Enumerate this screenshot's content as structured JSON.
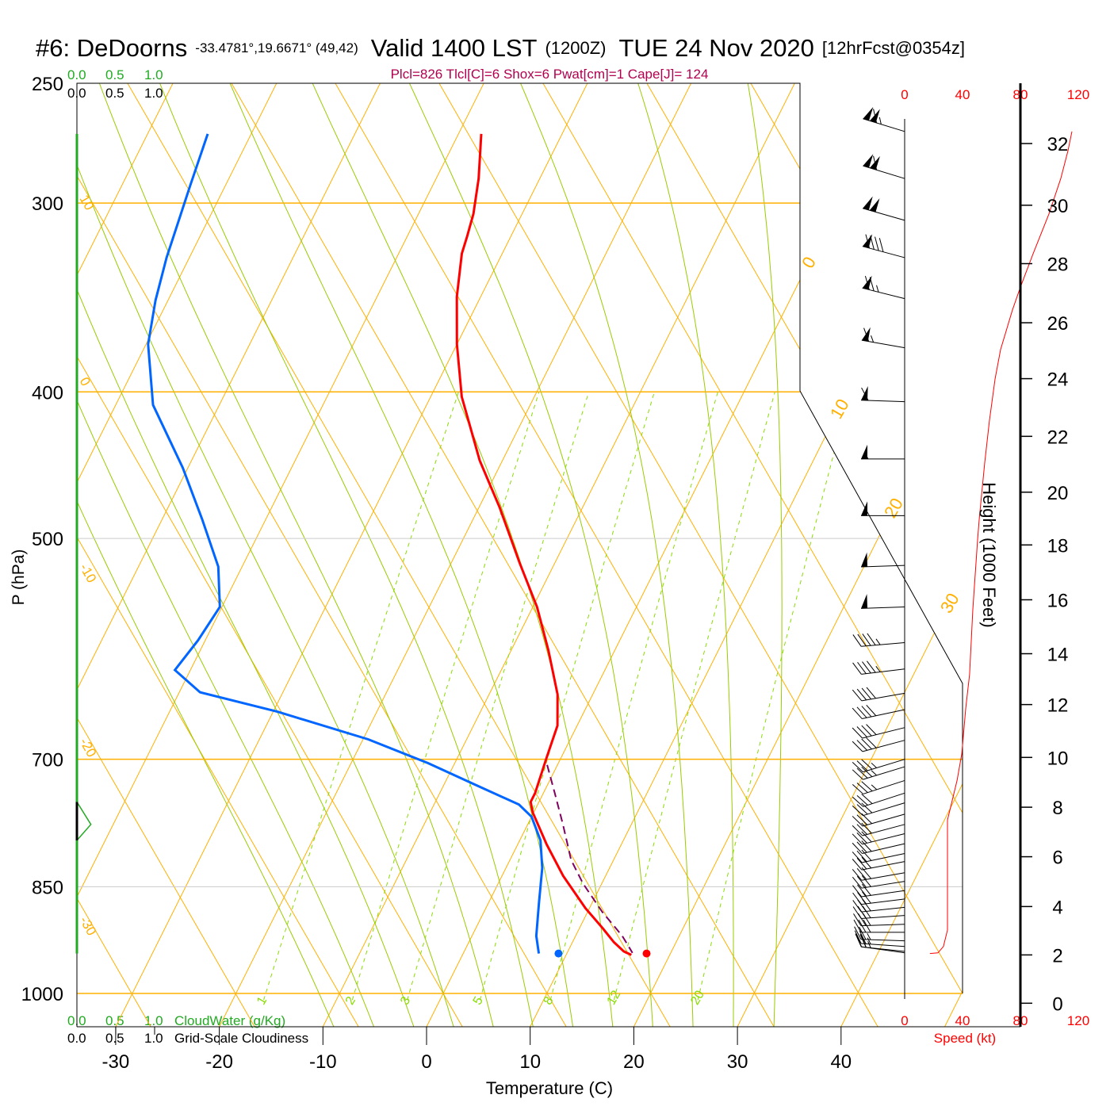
{
  "title": {
    "station": "#6: DeDoorns",
    "coords": "-33.4781°,19.6671° (49,42)",
    "valid": "Valid 1400 LST",
    "utc": "(1200Z)",
    "date": "TUE 24 Nov 2020",
    "forecast": "[12hrFcst@0354z]"
  },
  "stats": "Plcl=826 Tlcl[C]=6 Shox=6 Pwat[cm]=1 Cape[J]= 124",
  "colors": {
    "temperature": "#ff0000",
    "dewpoint": "#0066ff",
    "parcel": "#800060",
    "isotherm": "#ffb000",
    "moist": "#99cc00",
    "mixing": "#88dd00",
    "cloud": "#22aa22",
    "speed": "#ff0000",
    "stats": "#b0004f"
  },
  "legend": {
    "cloud_ticks": [
      "0.0",
      "0.5",
      "1.0"
    ],
    "cloudwater_label": "CloudWater (g/Kg)",
    "cloudiness_label": "Grid-Scale Cloudiness"
  },
  "chart_data": {
    "type": "skew-t",
    "xlabel": "Temperature (C)",
    "ylabel": "P (hPa)",
    "pressure_ticks": [
      250,
      300,
      400,
      500,
      700,
      850,
      1000
    ],
    "temperature_ticks": [
      -30,
      -20,
      -10,
      0,
      10,
      20,
      30,
      40
    ],
    "isotherm_labels": [
      {
        "t": 0,
        "label": "0"
      },
      {
        "t": 10,
        "label": "10"
      },
      {
        "t": 20,
        "label": "20"
      },
      {
        "t": 30,
        "label": "30"
      }
    ],
    "adiabat_labels": [
      "10",
      "0",
      "-10",
      "-20",
      "-30"
    ],
    "mixing_ratio_labels": [
      {
        "w": 1,
        "label": "1"
      },
      {
        "w": 2,
        "label": "2"
      },
      {
        "w": 3,
        "label": "3"
      },
      {
        "w": 5,
        "label": "5"
      },
      {
        "w": 8,
        "label": "8"
      },
      {
        "w": 12,
        "label": "12"
      },
      {
        "w": 20,
        "label": "20"
      }
    ],
    "temperature": [
      [
        270,
        -37.8
      ],
      [
        289,
        -35.9
      ],
      [
        305,
        -34.7
      ],
      [
        316,
        -34.2
      ],
      [
        324,
        -33.9
      ],
      [
        346,
        -32.3
      ],
      [
        372,
        -30.0
      ],
      [
        403,
        -27.0
      ],
      [
        444,
        -22.2
      ],
      [
        477,
        -18.0
      ],
      [
        519,
        -13.4
      ],
      [
        555,
        -9.6
      ],
      [
        593,
        -6.4
      ],
      [
        634,
        -3.4
      ],
      [
        665,
        -1.9
      ],
      [
        698,
        -1.4
      ],
      [
        737,
        -0.8
      ],
      [
        747,
        -0.8
      ],
      [
        759,
        -0.1
      ],
      [
        797,
        2.8
      ],
      [
        836,
        5.9
      ],
      [
        878,
        9.6
      ],
      [
        905,
        12.2
      ],
      [
        925,
        14.0
      ],
      [
        938,
        15.4
      ],
      [
        943,
        16.3
      ]
    ],
    "dewpoint": [
      [
        270,
        -64.2
      ],
      [
        292,
        -63.4
      ],
      [
        326,
        -62.2
      ],
      [
        348,
        -61.2
      ],
      [
        372,
        -59.8
      ],
      [
        408,
        -56.4
      ],
      [
        449,
        -50.5
      ],
      [
        486,
        -46.1
      ],
      [
        522,
        -42.3
      ],
      [
        555,
        -40.2
      ],
      [
        584,
        -40.7
      ],
      [
        611,
        -41.5
      ],
      [
        632,
        -38.0
      ],
      [
        651,
        -29.6
      ],
      [
        679,
        -19.5
      ],
      [
        704,
        -12.6
      ],
      [
        728,
        -6.9
      ],
      [
        750,
        -1.8
      ],
      [
        764,
        0.0
      ],
      [
        792,
        2.0
      ],
      [
        826,
        3.5
      ],
      [
        872,
        4.9
      ],
      [
        916,
        6.2
      ],
      [
        941,
        7.3
      ]
    ],
    "parcel": [
      [
        706,
        -1.0
      ],
      [
        737,
        1.1
      ],
      [
        773,
        3.4
      ],
      [
        816,
        5.9
      ],
      [
        846,
        8.2
      ],
      [
        883,
        11.4
      ],
      [
        916,
        14.5
      ],
      [
        940,
        16.3
      ]
    ],
    "surface": {
      "pressure": 941,
      "temperature": 17.7,
      "dewpoint": 9.2
    },
    "cloud_water": [
      [
        747,
        0
      ],
      [
        773,
        0.18
      ],
      [
        792,
        0
      ]
    ],
    "cloudiness_layer": [
      747,
      792
    ],
    "speed_axis": {
      "label": "Speed (kt)",
      "ticks": [
        "0",
        "40",
        "80",
        "120"
      ],
      "range": [
        0,
        120
      ]
    },
    "wind_speed": [
      [
        269,
        115.6
      ],
      [
        277,
        112.9
      ],
      [
        289,
        107.9
      ],
      [
        305,
        99.7
      ],
      [
        324,
        88.8
      ],
      [
        341,
        80
      ],
      [
        353,
        74.5
      ],
      [
        375,
        66.3
      ],
      [
        392,
        62.5
      ],
      [
        418,
        58.6
      ],
      [
        446,
        55.3
      ],
      [
        486,
        51.5
      ],
      [
        501,
        50.4
      ],
      [
        557,
        47.1
      ],
      [
        615,
        44.9
      ],
      [
        648,
        42.2
      ],
      [
        694,
        39.5
      ],
      [
        723,
        36.2
      ],
      [
        768,
        29.6
      ],
      [
        908,
        29.6
      ],
      [
        931,
        26.8
      ],
      [
        940,
        23
      ],
      [
        941,
        17.5
      ]
    ],
    "wind_barbs": [
      {
        "p": 269,
        "spd": 115,
        "dir": 287
      },
      {
        "p": 289,
        "spd": 110,
        "dir": 287
      },
      {
        "p": 308,
        "spd": 100,
        "dir": 286
      },
      {
        "p": 326,
        "spd": 90,
        "dir": 285
      },
      {
        "p": 347,
        "spd": 75,
        "dir": 284
      },
      {
        "p": 374,
        "spd": 65,
        "dir": 280
      },
      {
        "p": 406,
        "spd": 60,
        "dir": 272
      },
      {
        "p": 443,
        "spd": 55,
        "dir": 270
      },
      {
        "p": 483,
        "spd": 50,
        "dir": 270
      },
      {
        "p": 521,
        "spd": 50,
        "dir": 268
      },
      {
        "p": 555,
        "spd": 50,
        "dir": 268
      },
      {
        "p": 586,
        "spd": 45,
        "dir": 265
      },
      {
        "p": 610,
        "spd": 45,
        "dir": 263
      },
      {
        "p": 633,
        "spd": 40,
        "dir": 260
      },
      {
        "p": 649,
        "spd": 40,
        "dir": 258
      },
      {
        "p": 667,
        "spd": 40,
        "dir": 256
      },
      {
        "p": 680,
        "spd": 40,
        "dir": 255
      },
      {
        "p": 700,
        "spd": 35,
        "dir": 253
      },
      {
        "p": 708,
        "spd": 35,
        "dir": 253
      },
      {
        "p": 723,
        "spd": 35,
        "dir": 252
      },
      {
        "p": 737,
        "spd": 30,
        "dir": 252
      },
      {
        "p": 748,
        "spd": 30,
        "dir": 253
      },
      {
        "p": 761,
        "spd": 30,
        "dir": 254
      },
      {
        "p": 773,
        "spd": 30,
        "dir": 255
      },
      {
        "p": 784,
        "spd": 30,
        "dir": 256
      },
      {
        "p": 796,
        "spd": 30,
        "dir": 257
      },
      {
        "p": 808,
        "spd": 30,
        "dir": 258
      },
      {
        "p": 818,
        "spd": 30,
        "dir": 259
      },
      {
        "p": 832,
        "spd": 30,
        "dir": 260
      },
      {
        "p": 843,
        "spd": 30,
        "dir": 261
      },
      {
        "p": 855,
        "spd": 30,
        "dir": 262
      },
      {
        "p": 866,
        "spd": 30,
        "dir": 263
      },
      {
        "p": 877,
        "spd": 30,
        "dir": 264
      },
      {
        "p": 888,
        "spd": 30,
        "dir": 266
      },
      {
        "p": 900,
        "spd": 30,
        "dir": 268
      },
      {
        "p": 911,
        "spd": 30,
        "dir": 270
      },
      {
        "p": 923,
        "spd": 25,
        "dir": 272
      },
      {
        "p": 931,
        "spd": 25,
        "dir": 274
      },
      {
        "p": 938,
        "spd": 25,
        "dir": 276
      },
      {
        "p": 940,
        "spd": 20,
        "dir": 278
      }
    ],
    "height_axis": {
      "label": "Height (1000 Feet)",
      "ticks_kft": [
        "0",
        "2",
        "4",
        "6",
        "8",
        "10",
        "12",
        "14",
        "16",
        "18",
        "20",
        "22",
        "24",
        "26",
        "28",
        "30",
        "32"
      ],
      "pressure_hpa": [
        1015,
        943,
        876,
        812,
        753,
        698,
        644,
        596,
        549,
        505,
        466,
        428,
        392,
        360,
        329,
        301,
        274
      ]
    }
  }
}
